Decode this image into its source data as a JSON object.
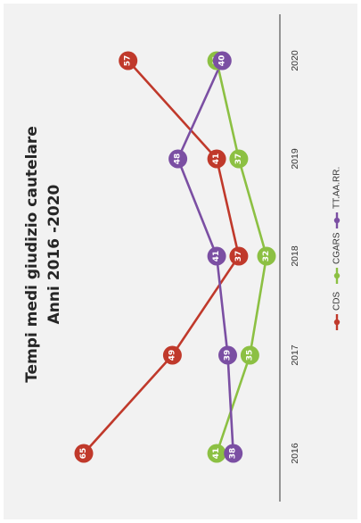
{
  "chart_data": {
    "type": "line",
    "title": "Tempi medi giudizio cautelare",
    "subtitle": "Anni 2016 -2020",
    "categories": [
      "2016",
      "2017",
      "2018",
      "2019",
      "2020"
    ],
    "series": [
      {
        "name": "CDS",
        "color": "#c0392b",
        "values": [
          65,
          49,
          37,
          41,
          57
        ]
      },
      {
        "name": "CGARS",
        "color": "#8cc043",
        "values": [
          41,
          35,
          32,
          37,
          41
        ]
      },
      {
        "name": "TT.AA.RR.",
        "color": "#7b4fa3",
        "values": [
          38,
          39,
          41,
          48,
          40
        ]
      }
    ],
    "xlabel": "",
    "ylabel": "",
    "ylim": [
      30,
      68
    ],
    "grid": false,
    "legend": "bottom",
    "orientation": "rotated-90-clockwise"
  }
}
